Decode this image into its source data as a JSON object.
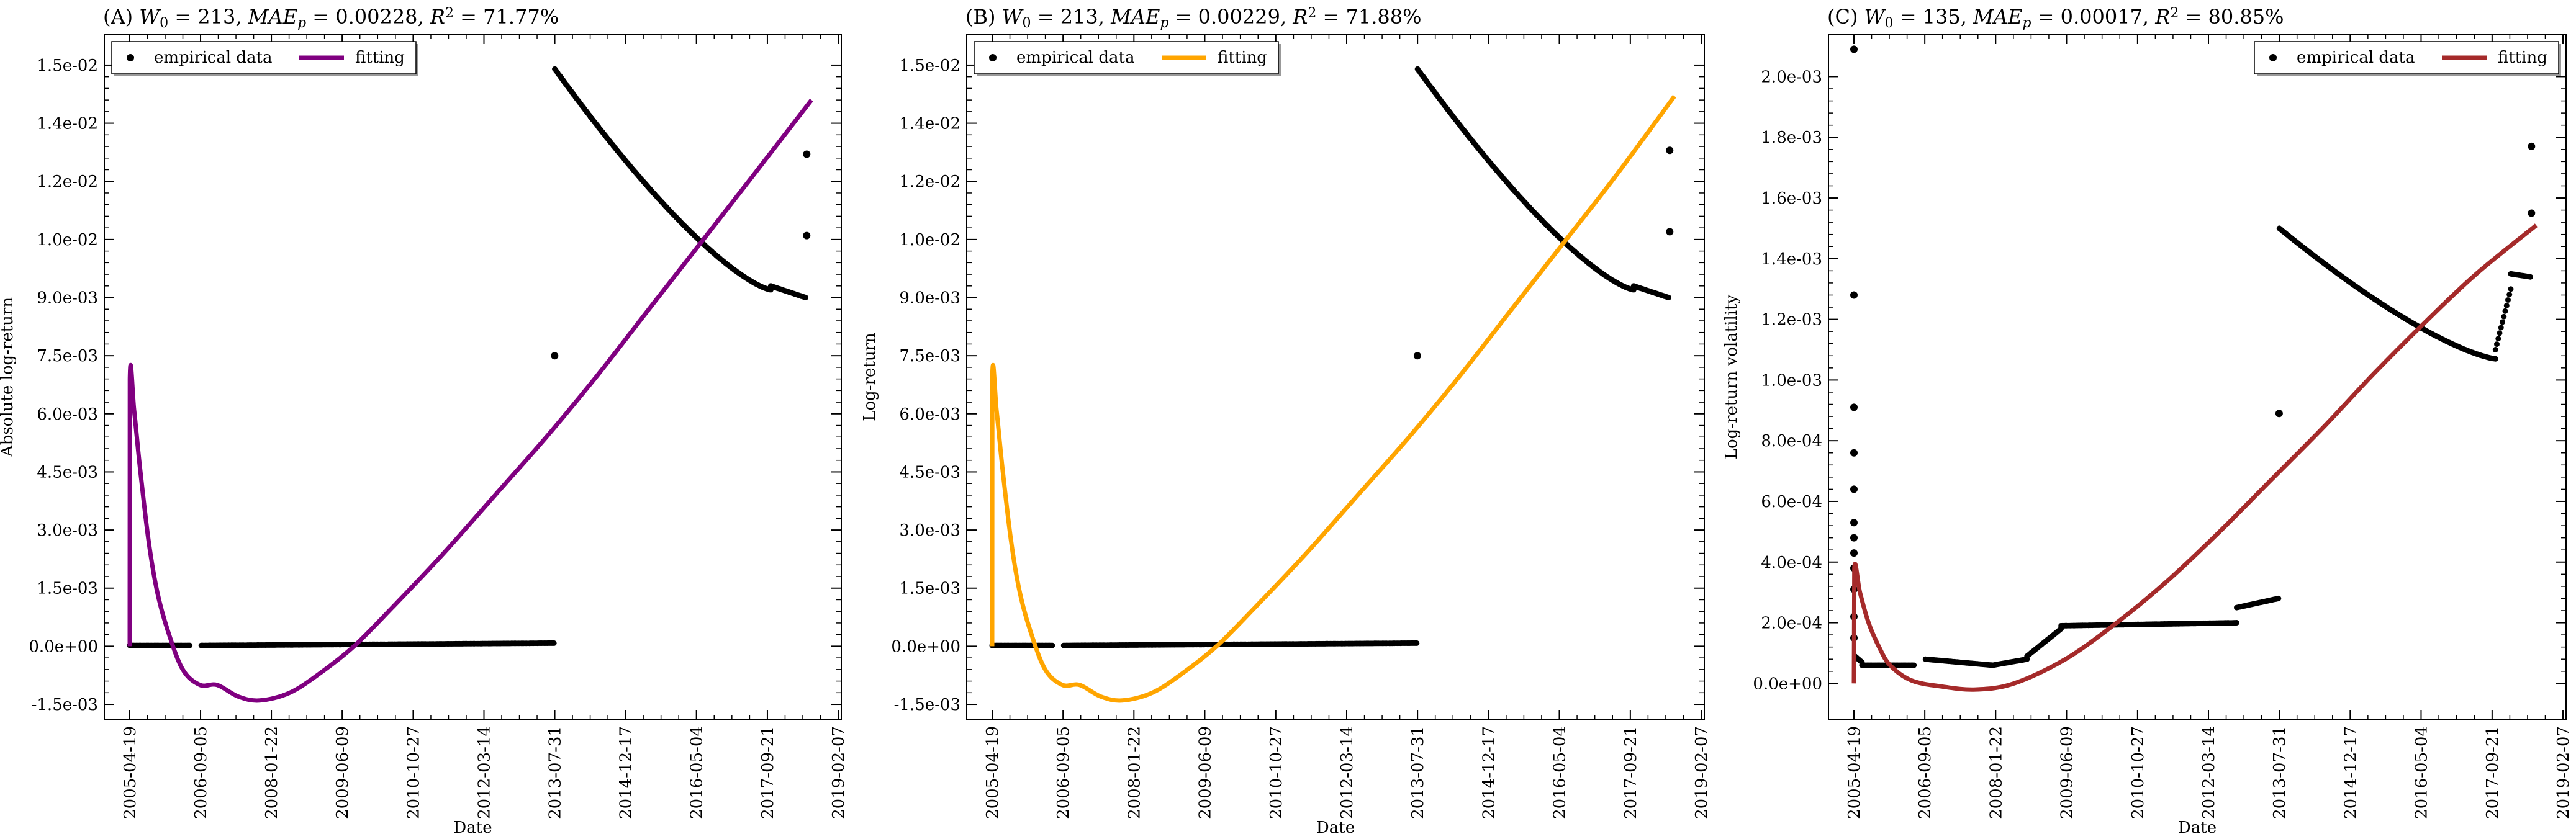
{
  "chart_data": [
    {
      "type": "scatter",
      "title": "(A) W0 = 213, MAEp = 0.00228, R2 = 71.77%",
      "title_parts": {
        "prefix": "(A) ",
        "w0": "213",
        "mae": "0.00228",
        "r2": "71.77%"
      },
      "xlabel": "Date",
      "ylabel": "Absolute log-return",
      "xlim": [
        "2004-10-20",
        "2019-03-01"
      ],
      "ylim": [
        -0.0019,
        0.0158
      ],
      "yticks": [
        -0.0015,
        0.0,
        0.0015,
        0.003,
        0.0045,
        0.006,
        0.0075,
        0.009,
        0.0105,
        0.012,
        0.0135,
        0.015
      ],
      "ytick_labels": [
        "-1.5e-03",
        "0.0e+00",
        "1.5e-03",
        "3.0e-03",
        "4.5e-03",
        "6.0e-03",
        "7.5e-03",
        "9.0e-03",
        "1.0e-02",
        "1.2e-02",
        "1.4e-02",
        "1.5e-02"
      ],
      "xtick_labels": [
        "2005-04-19",
        "2006-09-05",
        "2008-01-22",
        "2009-06-09",
        "2010-10-27",
        "2012-03-14",
        "2013-07-31",
        "2014-12-17",
        "2016-05-04",
        "2017-09-21",
        "2019-02-07"
      ],
      "fit_color": "#800080",
      "legend": {
        "items": [
          "empirical data",
          "fitting"
        ],
        "placement": "top-left"
      },
      "series": [
        {
          "name": "empirical data",
          "kind": "points",
          "segments": [
            {
              "x0": "2005-04-19",
              "x1": "2006-06-20",
              "y0": 2e-05,
              "y1": 2e-05
            },
            {
              "x0": "2006-09-10",
              "x1": "2013-07-25",
              "y0": 2e-05,
              "y1": 8e-05
            },
            {
              "x0": "2013-07-31",
              "x1": "2017-10-15",
              "y0": 0.0149,
              "y1": 0.0092,
              "shape": "convex"
            },
            {
              "x0": "2017-10-15",
              "x1": "2018-06-20",
              "y0": 0.0093,
              "y1": 0.009
            }
          ],
          "points": [
            {
              "x": "2013-07-30",
              "y": 0.0075
            },
            {
              "x": "2018-06-28",
              "y": 0.0127
            },
            {
              "x": "2018-06-28",
              "y": 0.0106
            }
          ]
        },
        {
          "name": "fitting",
          "kind": "curve",
          "points": [
            {
              "x": "2005-04-19",
              "y": 0.0
            },
            {
              "x": "2005-04-20",
              "y": 0.0069
            },
            {
              "x": "2005-05-20",
              "y": 0.0061
            },
            {
              "x": "2005-07-01",
              "y": 0.0046
            },
            {
              "x": "2005-09-01",
              "y": 0.0027
            },
            {
              "x": "2005-11-01",
              "y": 0.0014
            },
            {
              "x": "2006-01-15",
              "y": 0.0004
            },
            {
              "x": "2006-05-01",
              "y": -0.0006
            },
            {
              "x": "2006-09-01",
              "y": -0.001
            },
            {
              "x": "2007-01-01",
              "y": -0.001
            },
            {
              "x": "2007-06-01",
              "y": -0.0013
            },
            {
              "x": "2007-11-01",
              "y": -0.0014
            },
            {
              "x": "2008-06-01",
              "y": -0.0012
            },
            {
              "x": "2009-01-01",
              "y": -0.0007
            },
            {
              "x": "2009-09-01",
              "y": 0.0
            },
            {
              "x": "2010-06-01",
              "y": 0.001
            },
            {
              "x": "2011-06-01",
              "y": 0.0024
            },
            {
              "x": "2012-06-01",
              "y": 0.0039
            },
            {
              "x": "2013-06-01",
              "y": 0.0054
            },
            {
              "x": "2014-06-01",
              "y": 0.007
            },
            {
              "x": "2015-06-01",
              "y": 0.0087
            },
            {
              "x": "2016-06-01",
              "y": 0.0104
            },
            {
              "x": "2017-06-01",
              "y": 0.0121
            },
            {
              "x": "2018-08-01",
              "y": 0.0141
            }
          ]
        }
      ]
    },
    {
      "type": "scatter",
      "title": "(B) W0 = 213, MAEp = 0.00229, R2 = 71.88%",
      "title_parts": {
        "prefix": "(B) ",
        "w0": "213",
        "mae": "0.00229",
        "r2": "71.88%"
      },
      "xlabel": "Date",
      "ylabel": "Log-return",
      "xlim": [
        "2004-10-20",
        "2019-03-01"
      ],
      "ylim": [
        -0.0019,
        0.0158
      ],
      "yticks": [
        -0.0015,
        0.0,
        0.0015,
        0.003,
        0.0045,
        0.006,
        0.0075,
        0.009,
        0.0105,
        0.012,
        0.0135,
        0.015
      ],
      "ytick_labels": [
        "-1.5e-03",
        "0.0e+00",
        "1.5e-03",
        "3.0e-03",
        "4.5e-03",
        "6.0e-03",
        "7.5e-03",
        "9.0e-03",
        "1.0e-02",
        "1.2e-02",
        "1.4e-02",
        "1.5e-02"
      ],
      "xtick_labels": [
        "2005-04-19",
        "2006-09-05",
        "2008-01-22",
        "2009-06-09",
        "2010-10-27",
        "2012-03-14",
        "2013-07-31",
        "2014-12-17",
        "2016-05-04",
        "2017-09-21",
        "2019-02-07"
      ],
      "fit_color": "#FFA500",
      "legend": {
        "items": [
          "empirical data",
          "fitting"
        ],
        "placement": "top-left"
      },
      "series": [
        {
          "name": "empirical data",
          "kind": "points",
          "segments": [
            {
              "x0": "2005-04-19",
              "x1": "2006-06-20",
              "y0": 2e-05,
              "y1": 2e-05
            },
            {
              "x0": "2006-09-10",
              "x1": "2013-07-25",
              "y0": 2e-05,
              "y1": 8e-05
            },
            {
              "x0": "2013-07-31",
              "x1": "2017-10-15",
              "y0": 0.0149,
              "y1": 0.0092,
              "shape": "convex"
            },
            {
              "x0": "2017-10-15",
              "x1": "2018-06-20",
              "y0": 0.0093,
              "y1": 0.009
            }
          ],
          "points": [
            {
              "x": "2013-07-30",
              "y": 0.0075
            },
            {
              "x": "2018-06-28",
              "y": 0.0128
            },
            {
              "x": "2018-06-28",
              "y": 0.0107
            }
          ]
        },
        {
          "name": "fitting",
          "kind": "curve",
          "points": [
            {
              "x": "2005-04-19",
              "y": 0.0
            },
            {
              "x": "2005-04-20",
              "y": 0.0069
            },
            {
              "x": "2005-05-20",
              "y": 0.0061
            },
            {
              "x": "2005-07-01",
              "y": 0.0046
            },
            {
              "x": "2005-09-01",
              "y": 0.0027
            },
            {
              "x": "2005-11-01",
              "y": 0.0014
            },
            {
              "x": "2006-01-15",
              "y": 0.0004
            },
            {
              "x": "2006-05-01",
              "y": -0.0006
            },
            {
              "x": "2006-09-01",
              "y": -0.001
            },
            {
              "x": "2007-01-01",
              "y": -0.001
            },
            {
              "x": "2007-06-01",
              "y": -0.0013
            },
            {
              "x": "2007-11-01",
              "y": -0.0014
            },
            {
              "x": "2008-06-01",
              "y": -0.0012
            },
            {
              "x": "2009-01-01",
              "y": -0.0007
            },
            {
              "x": "2009-09-01",
              "y": 0.0
            },
            {
              "x": "2010-06-01",
              "y": 0.001
            },
            {
              "x": "2011-06-01",
              "y": 0.0024
            },
            {
              "x": "2012-06-01",
              "y": 0.0039
            },
            {
              "x": "2013-06-01",
              "y": 0.0054
            },
            {
              "x": "2014-06-01",
              "y": 0.007
            },
            {
              "x": "2015-06-01",
              "y": 0.0087
            },
            {
              "x": "2016-06-01",
              "y": 0.0104
            },
            {
              "x": "2017-06-01",
              "y": 0.0121
            },
            {
              "x": "2018-08-01",
              "y": 0.0142
            }
          ]
        }
      ]
    },
    {
      "type": "scatter",
      "title": "(C) W0 = 135, MAEp = 0.00017, R2 = 80.85%",
      "title_parts": {
        "prefix": "(C) ",
        "w0": "135",
        "mae": "0.00017",
        "r2": "80.85%"
      },
      "xlabel": "Date",
      "ylabel": "Log-return volatility",
      "xlim": [
        "2004-10-20",
        "2019-03-01"
      ],
      "ylim": [
        -0.00012,
        0.00214
      ],
      "yticks": [
        0.0,
        0.0002,
        0.0004,
        0.0006,
        0.0008,
        0.001,
        0.0012,
        0.0014,
        0.0016,
        0.0018,
        0.002
      ],
      "ytick_labels": [
        "0.0e+00",
        "2.0e-04",
        "4.0e-04",
        "6.0e-04",
        "8.0e-04",
        "1.0e-03",
        "1.2e-03",
        "1.4e-03",
        "1.6e-03",
        "1.8e-03",
        "2.0e-03"
      ],
      "xtick_labels": [
        "2005-04-19",
        "2006-09-05",
        "2008-01-22",
        "2009-06-09",
        "2010-10-27",
        "2012-03-14",
        "2013-07-31",
        "2014-12-17",
        "2016-05-04",
        "2017-09-21",
        "2019-02-07"
      ],
      "fit_color": "#A52A2A",
      "legend": {
        "items": [
          "empirical data",
          "fitting"
        ],
        "placement": "top-right"
      },
      "series": [
        {
          "name": "empirical data",
          "kind": "points",
          "segments": [
            {
              "x0": "2005-04-25",
              "x1": "2005-06-15",
              "y0": 9e-05,
              "y1": 7e-05
            },
            {
              "x0": "2005-06-15",
              "x1": "2006-06-20",
              "y0": 6e-05,
              "y1": 6e-05
            },
            {
              "x0": "2006-09-10",
              "x1": "2008-01-01",
              "y0": 8e-05,
              "y1": 6e-05
            },
            {
              "x0": "2008-01-01",
              "x1": "2008-09-01",
              "y0": 6e-05,
              "y1": 8e-05
            },
            {
              "x0": "2008-09-01",
              "x1": "2009-05-01",
              "y0": 9e-05,
              "y1": 0.00018
            },
            {
              "x0": "2009-05-01",
              "x1": "2012-10-01",
              "y0": 0.00019,
              "y1": 0.0002
            },
            {
              "x0": "2012-10-01",
              "x1": "2013-07-25",
              "y0": 0.00025,
              "y1": 0.00028
            },
            {
              "x0": "2013-07-31",
              "x1": "2017-10-15",
              "y0": 0.0015,
              "y1": 0.00107,
              "shape": "convex"
            },
            {
              "x0": "2017-10-15",
              "x1": "2018-02-01",
              "y0": 0.0011,
              "y1": 0.0013
            },
            {
              "x0": "2018-02-01",
              "x1": "2018-06-20",
              "y0": 0.00135,
              "y1": 0.00134
            }
          ],
          "points": [
            {
              "x": "2005-04-19",
              "y": 0.00209
            },
            {
              "x": "2005-04-19",
              "y": 0.00128
            },
            {
              "x": "2005-04-19",
              "y": 0.00091
            },
            {
              "x": "2005-04-19",
              "y": 0.00076
            },
            {
              "x": "2005-04-19",
              "y": 0.00064
            },
            {
              "x": "2005-04-19",
              "y": 0.00053
            },
            {
              "x": "2005-04-19",
              "y": 0.00048
            },
            {
              "x": "2005-04-19",
              "y": 0.00043
            },
            {
              "x": "2005-04-19",
              "y": 0.00038
            },
            {
              "x": "2005-04-19",
              "y": 0.00031
            },
            {
              "x": "2005-04-19",
              "y": 0.00022
            },
            {
              "x": "2005-04-19",
              "y": 0.00015
            },
            {
              "x": "2013-07-30",
              "y": 0.00089
            },
            {
              "x": "2018-06-28",
              "y": 0.00177
            },
            {
              "x": "2018-06-28",
              "y": 0.00155
            }
          ]
        },
        {
          "name": "fitting",
          "kind": "curve",
          "points": [
            {
              "x": "2005-04-19",
              "y": 0.0
            },
            {
              "x": "2005-04-22",
              "y": 0.00038
            },
            {
              "x": "2005-06-01",
              "y": 0.0003
            },
            {
              "x": "2005-08-01",
              "y": 0.0002
            },
            {
              "x": "2005-10-15",
              "y": 0.00012
            },
            {
              "x": "2006-01-01",
              "y": 6e-05
            },
            {
              "x": "2006-06-01",
              "y": 1e-05
            },
            {
              "x": "2007-01-01",
              "y": -1e-05
            },
            {
              "x": "2007-09-01",
              "y": -2e-05
            },
            {
              "x": "2008-06-01",
              "y": 0.0
            },
            {
              "x": "2009-06-01",
              "y": 8e-05
            },
            {
              "x": "2010-06-01",
              "y": 0.0002
            },
            {
              "x": "2011-06-01",
              "y": 0.00034
            },
            {
              "x": "2012-06-01",
              "y": 0.0005
            },
            {
              "x": "2013-06-01",
              "y": 0.00067
            },
            {
              "x": "2014-06-01",
              "y": 0.00084
            },
            {
              "x": "2015-06-01",
              "y": 0.00102
            },
            {
              "x": "2016-06-01",
              "y": 0.00119
            },
            {
              "x": "2017-06-01",
              "y": 0.00135
            },
            {
              "x": "2018-08-01",
              "y": 0.00151
            }
          ]
        }
      ]
    }
  ]
}
